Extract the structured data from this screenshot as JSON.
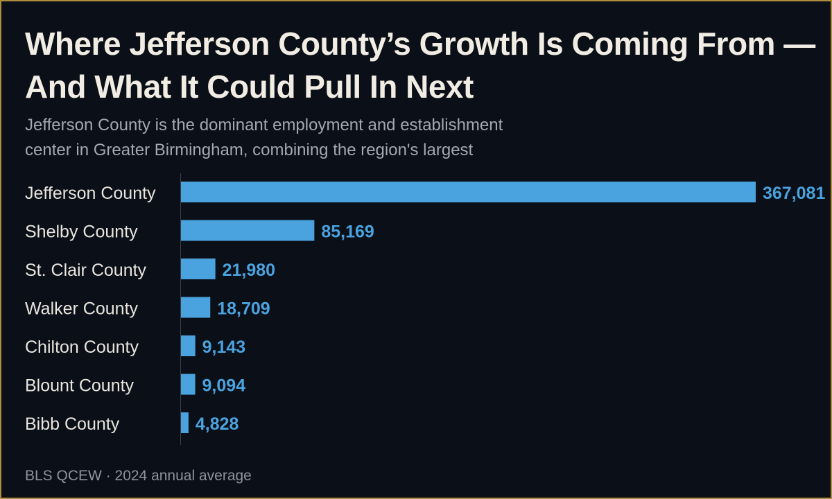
{
  "title": "Where Jefferson County’s Growth Is Coming From — And What It Could Pull In Next",
  "subtitle": "Jefferson County is the dominant employment and establishment center in Greater Birmingham, combining the region's largest",
  "footer": "BLS QCEW · 2024 annual average",
  "colors": {
    "bar": "#4aa3df",
    "label": "#e9e6df",
    "value": "#4aa3df",
    "axis": "#3a3f48"
  },
  "chart_data": {
    "type": "bar",
    "orientation": "horizontal",
    "categories": [
      "Jefferson County",
      "Shelby County",
      "St. Clair County",
      "Walker County",
      "Chilton County",
      "Blount County",
      "Bibb County"
    ],
    "values": [
      367081,
      85169,
      21980,
      18709,
      9143,
      9094,
      4828
    ],
    "value_labels": [
      "367,081",
      "85,169",
      "21,980",
      "18,709",
      "9,143",
      "9,094",
      "4,828"
    ],
    "xlim": [
      0,
      367081
    ],
    "grid": false,
    "legend": "none"
  }
}
